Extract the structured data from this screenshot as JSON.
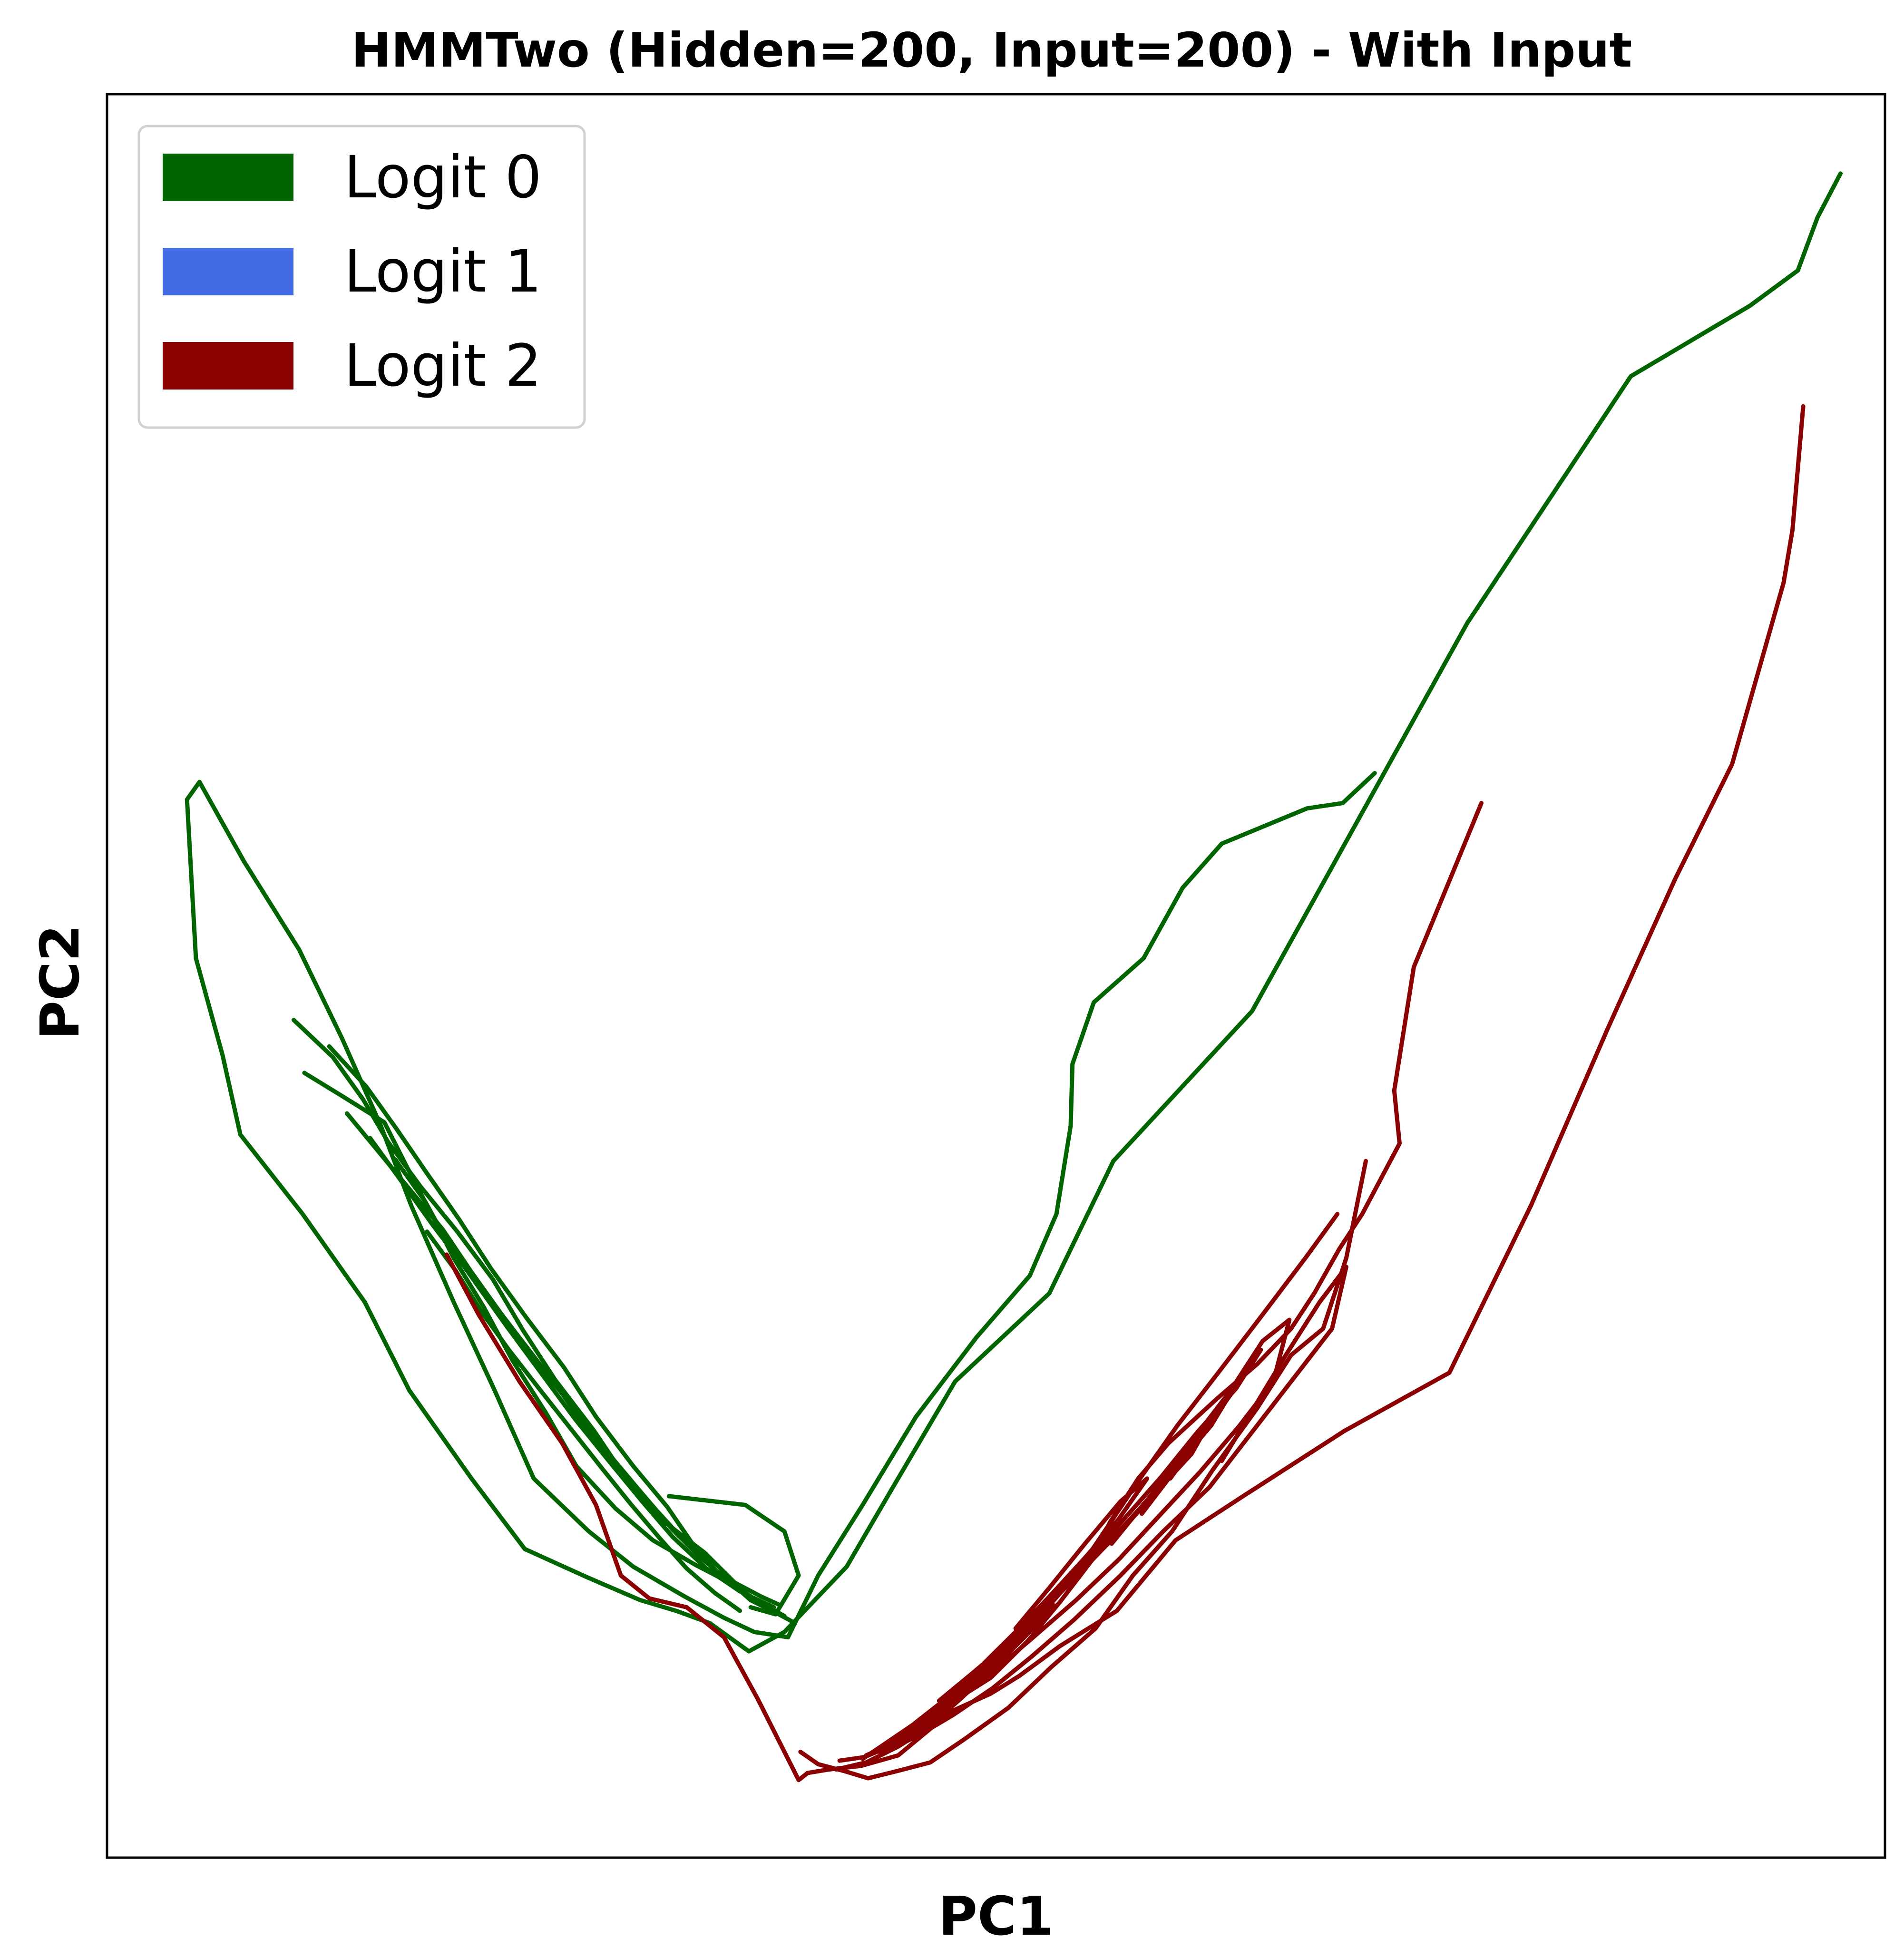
{
  "chart_data": {
    "type": "line",
    "title": "HMMTwo (Hidden=200, Input=200) - With Input",
    "xlabel": "PC1",
    "ylabel": "PC2",
    "xlim": [
      0,
      100
    ],
    "ylim": [
      0,
      100
    ],
    "ticks_shown": false,
    "grid": false,
    "legend_position": "top-left",
    "legend": [
      {
        "name": "Logit 0",
        "color": "#006400"
      },
      {
        "name": "Logit 1",
        "color": "#4169E1"
      },
      {
        "name": "Logit 2",
        "color": "#8B0000"
      }
    ],
    "series": [
      {
        "name": "Logit 0",
        "color": "#006400",
        "segments": [
          {
            "x": [
              97.5,
              96.2,
              95.1,
              92.4,
              85.7,
              76.5,
              64.4,
              56.6,
              53.0,
              47.7,
              44.2,
              41.6,
              38.1,
              36.1,
              33.9
            ],
            "y": [
              95.5,
              93.0,
              90.0,
              88.0,
              84.0,
              70.0,
              48.0,
              39.5,
              32.0,
              27.0,
              21.0,
              16.5,
              12.8,
              11.7,
              13.3
            ]
          },
          {
            "x": [
              33.9,
              32.0,
              30.0,
              27.0,
              23.5,
              20.5,
              17.0,
              14.5,
              11.0,
              7.5,
              6.5,
              5.0,
              4.5,
              5.2,
              7.7,
              10.8,
              13.2,
              15.4,
              17.1,
              19.5,
              21.8,
              24.0,
              27.1,
              29.6,
              32.5,
              34.7,
              36.4,
              38.3
            ],
            "y": [
              13.3,
              14.0,
              14.6,
              15.9,
              17.5,
              21.5,
              26.5,
              31.5,
              36.5,
              41.0,
              45.5,
              51.0,
              60.0,
              61.0,
              56.5,
              51.5,
              46.5,
              41.5,
              37.0,
              31.5,
              26.5,
              21.5,
              18.5,
              16.5,
              14.8,
              13.6,
              12.8,
              12.5
            ]
          },
          {
            "x": [
              38.3,
              40.0,
              42.5,
              45.5,
              48.9,
              51.9,
              53.4,
              54.2,
              54.3,
              55.5,
              58.3,
              60.5,
              62.7,
              67.5,
              69.5,
              71.3
            ],
            "y": [
              12.5,
              16.0,
              20.0,
              25.0,
              29.5,
              33.0,
              36.5,
              41.5,
              45.0,
              48.5,
              51.0,
              55.0,
              57.5,
              59.5,
              59.8,
              61.5
            ]
          },
          {
            "x": [
              11.1,
              13.2,
              15.6,
              16.8,
              18.2,
              19.5,
              21.2,
              22.8,
              24.7,
              26.4,
              28.6,
              30.7,
              33.1,
              35.2,
              36.2,
              37.6,
              38.7
            ],
            "y": [
              44.5,
              43.2,
              41.7,
              39.3,
              36.6,
              34.0,
              31.2,
              28.2,
              25.2,
              22.2,
              19.8,
              18.0,
              16.6,
              15.5,
              14.6,
              13.9,
              13.3
            ]
          },
          {
            "x": [
              10.5,
              12.7,
              14.4,
              15.8,
              17.6,
              19.7,
              21.7,
              23.4,
              25.2,
              27.4,
              29.2,
              31.4,
              33.6,
              35.3,
              36.8,
              37.9
            ],
            "y": [
              47.5,
              45.4,
              43.0,
              40.6,
              38.1,
              35.5,
              32.8,
              29.9,
              27.1,
              24.2,
              21.5,
              19.0,
              17.3,
              15.6,
              14.8,
              14.3
            ]
          },
          {
            "x": [
              12.5,
              14.6,
              16.3,
              18.0,
              19.8,
              21.6,
              23.6,
              25.7,
              27.5,
              29.6,
              31.5,
              33.0,
              34.5,
              36.0,
              37.5
            ],
            "y": [
              46.0,
              43.7,
              41.3,
              38.8,
              36.2,
              33.4,
              30.6,
              27.8,
              25.0,
              22.2,
              19.9,
              17.7,
              16.0,
              14.9,
              14.2
            ]
          },
          {
            "x": [
              13.5,
              15.3,
              17.1,
              18.9,
              20.5,
              22.2,
              24.1,
              26.0,
              27.8,
              29.8,
              31.8,
              33.4,
              35.3,
              36.7,
              38.1
            ],
            "y": [
              42.2,
              40.0,
              37.8,
              35.6,
              33.2,
              30.8,
              28.3,
              25.8,
              23.4,
              21.0,
              18.6,
              17.0,
              15.4,
              14.5,
              13.7
            ]
          },
          {
            "x": [
              14.8,
              16.6,
              18.3,
              20.1,
              21.9,
              23.8,
              25.6,
              27.2,
              29.1,
              30.9,
              32.8,
              34.2,
              35.9,
              37.2
            ],
            "y": [
              40.8,
              38.3,
              35.9,
              33.5,
              31.0,
              28.6,
              26.3,
              24.0,
              21.8,
              19.7,
              17.6,
              16.3,
              14.9,
              14.1
            ]
          },
          {
            "x": [
              16.2,
              17.9,
              19.2,
              20.8,
              22.5,
              24.4,
              26.3,
              28.3,
              30.1,
              31.8,
              33.7,
              35.6
            ],
            "y": [
              39.6,
              37.2,
              34.8,
              32.5,
              30.1,
              27.5,
              24.9,
              22.4,
              20.2,
              18.2,
              16.4,
              15.1
            ]
          },
          {
            "x": [
              31.6,
              35.9,
              38.1,
              38.9,
              37.6,
              36.2
            ],
            "y": [
              20.5,
              20.0,
              18.5,
              16.0,
              13.8,
              14.2
            ]
          },
          {
            "x": [
              18.0,
              19.6,
              21.1,
              22.6,
              24.3,
              26.1,
              27.9,
              29.5,
              31.1,
              32.6,
              34.2,
              35.6
            ],
            "y": [
              35.5,
              33.3,
              30.9,
              28.8,
              26.6,
              24.3,
              22.0,
              20.0,
              18.1,
              16.4,
              15.0,
              14.0
            ]
          }
        ]
      },
      {
        "name": "Logit 2",
        "color": "#8B0000",
        "segments": [
          {
            "x": [
              95.4,
              94.8,
              94.3,
              91.4,
              88.2,
              84.4,
              80.1,
              75.5,
              69.6,
              63.9,
              60.1,
              56.8,
              53.6,
              51.3,
              49.7,
              47.5,
              44.5,
              42.4,
              40.6,
              39.4,
              38.9,
              36.6,
              34.7,
              32.6,
              30.5,
              28.9,
              27.5,
              25.6,
              23.2,
              20.9,
              19.1
            ],
            "y": [
              82.3,
              75.3,
              72.3,
              62.0,
              55.5,
              47.0,
              37.0,
              27.5,
              24.2,
              20.5,
              18.0,
              14.0,
              12.0,
              10.3,
              9.3,
              8.3,
              5.8,
              5.2,
              5.0,
              4.8,
              4.4,
              9.0,
              12.5,
              14.2,
              14.7,
              16.0,
              20.0,
              23.5,
              27.0,
              30.8,
              34.2
            ]
          },
          {
            "x": [
              77.3,
              73.5,
              72.4,
              72.7,
              70.6,
              69.3,
              67.9,
              66.6,
              64.7,
              62.4,
              59.7,
              58.0,
              56.4,
              55.5,
              53.6,
              51.8,
              49.7,
              47.5,
              45.4,
              44.0,
              42.6,
              41.2
            ],
            "y": [
              59.8,
              50.5,
              43.5,
              40.5,
              36.5,
              34.5,
              32.0,
              30.0,
              28.0,
              26.0,
              23.5,
              21.5,
              19.0,
              17.0,
              14.5,
              12.3,
              10.2,
              8.8,
              7.5,
              6.3,
              5.7,
              5.5
            ]
          },
          {
            "x": [
              70.8,
              69.7,
              68.4,
              66.6,
              64.7,
              62.2,
              59.9,
              57.7,
              55.6,
              53.1,
              50.7,
              48.2,
              46.3,
              44.4,
              42.8,
              41.5,
              40.0,
              39.0
            ],
            "y": [
              39.5,
              34.0,
              30.0,
              28.5,
              25.5,
              22.0,
              18.5,
              16.0,
              13.0,
              10.8,
              8.5,
              6.7,
              5.4,
              4.9,
              4.5,
              4.9,
              5.3,
              6.0
            ]
          },
          {
            "x": [
              69.2,
              67.4,
              65.0,
              62.5,
              60.2,
              58.1,
              56.1,
              54.3,
              52.3,
              50.5,
              48.5,
              46.5,
              44.7,
              42.7
            ],
            "y": [
              36.5,
              34.0,
              30.8,
              27.5,
              24.5,
              21.5,
              18.5,
              15.8,
              13.5,
              11.4,
              9.8,
              8.0,
              6.7,
              5.8
            ]
          },
          {
            "x": [
              62.7,
              64.5,
              66.3,
              68.2,
              69.7,
              68.9,
              66.6,
              64.3,
              62.0,
              59.4,
              57.0,
              54.4,
              52.0,
              49.8,
              47.6,
              45.6,
              43.5
            ],
            "y": [
              22.5,
              25.5,
              28.5,
              31.5,
              33.5,
              30.0,
              27.0,
              24.0,
              21.0,
              18.5,
              16.0,
              13.5,
              11.4,
              9.6,
              8.1,
              6.9,
              5.9
            ]
          },
          {
            "x": [
              61.3,
              63.2,
              65.0,
              66.5,
              65.6,
              63.7,
              61.5,
              59.1,
              56.9,
              54.5,
              52.1,
              49.9,
              47.7,
              45.8,
              44.0
            ],
            "y": [
              24.0,
              26.5,
              29.3,
              30.5,
              27.0,
              24.5,
              21.9,
              19.3,
              16.9,
              14.6,
              12.5,
              10.6,
              8.8,
              7.4,
              6.2
            ]
          },
          {
            "x": [
              59.8,
              61.6,
              63.3,
              64.9,
              63.5,
              61.3,
              59.3,
              57.2,
              55.2,
              53.2,
              51.2,
              49.3,
              47.3,
              45.4
            ],
            "y": [
              21.5,
              24.0,
              26.4,
              28.8,
              26.6,
              24.1,
              21.6,
              19.2,
              16.9,
              14.8,
              12.7,
              10.8,
              9.1,
              7.6
            ]
          },
          {
            "x": [
              58.2,
              60.1,
              62.0,
              63.6,
              62.1,
              60.0,
              58.0,
              56.0,
              54.0,
              52.0,
              50.1,
              48.2,
              46.4
            ],
            "y": [
              19.5,
              22.0,
              24.6,
              27.0,
              24.5,
              22.0,
              19.7,
              17.5,
              15.4,
              13.4,
              11.5,
              9.8,
              8.3
            ]
          },
          {
            "x": [
              56.5,
              58.6,
              60.5,
              62.4,
              61.0,
              58.9,
              56.9,
              54.7,
              52.6,
              50.6,
              48.6,
              46.8
            ],
            "y": [
              17.8,
              20.4,
              22.9,
              25.4,
              22.9,
              20.6,
              18.4,
              16.2,
              14.1,
              12.1,
              10.4,
              8.9
            ]
          },
          {
            "x": [
              51.1,
              53.0,
              55.0,
              57.0,
              58.5,
              56.9,
              55.0,
              53.0,
              51.0,
              49.0,
              47.0
            ],
            "y": [
              13.0,
              15.3,
              17.8,
              20.2,
              21.5,
              19.2,
              17.0,
              14.8,
              12.7,
              10.7,
              9.0
            ]
          },
          {
            "x": [
              46.7,
              48.4,
              50.2,
              51.8,
              53.3,
              51.6,
              49.9,
              48.0,
              46.2,
              44.5,
              42.7,
              41.0
            ],
            "y": [
              8.0,
              9.7,
              11.3,
              12.9,
              14.3,
              12.5,
              10.8,
              9.0,
              7.4,
              6.3,
              5.4,
              5.0
            ]
          },
          {
            "x": [
              44.6,
              46.6,
              48.7,
              50.5,
              52.0,
              50.0,
              48.2,
              46.3,
              44.4,
              42.5
            ],
            "y": [
              6.8,
              8.3,
              10.3,
              12.1,
              13.4,
              11.6,
              9.9,
              8.2,
              6.9,
              5.6
            ]
          }
        ]
      }
    ]
  }
}
